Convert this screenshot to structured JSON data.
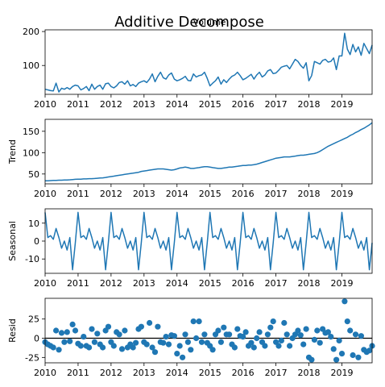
{
  "title": "Additive Decompose",
  "subtitle": "Volume",
  "chart_data": [
    {
      "type": "line",
      "panel": "observed",
      "ylabel": "",
      "series_color": "#1f77b4",
      "x_start_year": 2010,
      "x_ticks": [
        "2010",
        "2011",
        "2012",
        "2013",
        "2014",
        "2015",
        "2016",
        "2017",
        "2018",
        "2019"
      ],
      "ylim": [
        15,
        205
      ],
      "y_ticks": [
        100,
        200
      ],
      "values": [
        30,
        28,
        26,
        25,
        48,
        22,
        33,
        30,
        35,
        30,
        38,
        42,
        40,
        28,
        32,
        38,
        26,
        45,
        30,
        38,
        42,
        30,
        46,
        48,
        38,
        34,
        40,
        50,
        52,
        45,
        55,
        40,
        44,
        38,
        48,
        52,
        55,
        50,
        60,
        75,
        52,
        68,
        80,
        64,
        60,
        72,
        78,
        60,
        55,
        58,
        62,
        68,
        56,
        55,
        75,
        66,
        70,
        72,
        80,
        62,
        40,
        48,
        55,
        66,
        45,
        58,
        50,
        60,
        68,
        72,
        80,
        70,
        58,
        62,
        68,
        74,
        60,
        72,
        80,
        66,
        72,
        84,
        88,
        76,
        78,
        86,
        95,
        98,
        100,
        90,
        104,
        118,
        112,
        100,
        92,
        108,
        55,
        70,
        112,
        108,
        104,
        115,
        118,
        110,
        112,
        122,
        88,
        128,
        128,
        195,
        148,
        132,
        162,
        140,
        155,
        130,
        165,
        150,
        135,
        160
      ]
    },
    {
      "type": "line",
      "panel": "trend",
      "ylabel": "Trend",
      "series_color": "#1f77b4",
      "x_start_year": 2010,
      "x_ticks": [
        "2010",
        "2011",
        "2012",
        "2013",
        "2014",
        "2015",
        "2016",
        "2017",
        "2018",
        "2019"
      ],
      "ylim": [
        27,
        178
      ],
      "y_ticks": [
        50,
        100,
        150
      ],
      "values": [
        34,
        34,
        34.5,
        35,
        35,
        35.5,
        35.5,
        36,
        36,
        36.5,
        37,
        37.5,
        38,
        38,
        38.5,
        38.5,
        39,
        39,
        39.5,
        40,
        40.5,
        41,
        42,
        43,
        44,
        45,
        46,
        47,
        48,
        49,
        50,
        51,
        52,
        53,
        54,
        56,
        57,
        58,
        59,
        60,
        61,
        62,
        62,
        62,
        61,
        60,
        59,
        60,
        62,
        64,
        65,
        66,
        65,
        63,
        63,
        64,
        65,
        66,
        67,
        67,
        66,
        65,
        64,
        63,
        63,
        64,
        65,
        66,
        66,
        67,
        68,
        69,
        70,
        70,
        71,
        71,
        72,
        73,
        75,
        77,
        79,
        81,
        83,
        85,
        87,
        88,
        89,
        90,
        90,
        90,
        91,
        92,
        93,
        94,
        94,
        95,
        96,
        97,
        98,
        100,
        103,
        107,
        111,
        115,
        118,
        121,
        124,
        127,
        130,
        133,
        136,
        140,
        143,
        147,
        150,
        154,
        157,
        161,
        165,
        170
      ]
    },
    {
      "type": "line",
      "panel": "seasonal",
      "ylabel": "Seasonal",
      "series_color": "#1f77b4",
      "x_start_year": 2010,
      "x_ticks": [
        "2010",
        "2011",
        "2012",
        "2013",
        "2014",
        "2015",
        "2016",
        "2017",
        "2018",
        "2019"
      ],
      "ylim": [
        -18,
        18
      ],
      "y_ticks": [
        -10,
        0,
        10
      ],
      "values_one_cycle": [
        16,
        2,
        3,
        1,
        7,
        2,
        -4,
        0,
        -5,
        2,
        -16,
        -1
      ]
    },
    {
      "type": "scatter",
      "panel": "resid",
      "ylabel": "Resid",
      "series_color": "#1f77b4",
      "zero_line": true,
      "x_start_year": 2010,
      "x_ticks": [
        "2010",
        "2011",
        "2012",
        "2013",
        "2014",
        "2015",
        "2016",
        "2017",
        "2018",
        "2019"
      ],
      "ylim": [
        -32,
        52
      ],
      "y_ticks": [
        -25,
        0,
        25
      ],
      "values": [
        -5,
        -8,
        -10,
        -12,
        10,
        -15,
        7,
        -5,
        8,
        -4,
        18,
        10,
        -7,
        -10,
        2,
        -10,
        -12,
        12,
        -5,
        6,
        -8,
        -12,
        10,
        15,
        -5,
        -10,
        8,
        5,
        -14,
        10,
        -12,
        -8,
        -12,
        -6,
        12,
        15,
        -5,
        -8,
        20,
        -12,
        -18,
        15,
        -5,
        -6,
        2,
        -8,
        4,
        3,
        -20,
        -10,
        -25,
        5,
        -5,
        -15,
        22,
        0,
        22,
        -5,
        5,
        -6,
        -10,
        -15,
        5,
        10,
        -5,
        14,
        5,
        5,
        -8,
        -12,
        12,
        3,
        2,
        8,
        -10,
        -6,
        -12,
        0,
        8,
        -5,
        -10,
        5,
        14,
        22,
        -5,
        -10,
        -3,
        20,
        5,
        -10,
        0,
        5,
        10,
        4,
        -8,
        12,
        -25,
        -28,
        -2,
        10,
        -6,
        12,
        7,
        8,
        2,
        -14,
        -28,
        -3,
        -20,
        48,
        22,
        10,
        -22,
        5,
        -25,
        3,
        -15,
        -18,
        -16,
        -10
      ]
    }
  ]
}
